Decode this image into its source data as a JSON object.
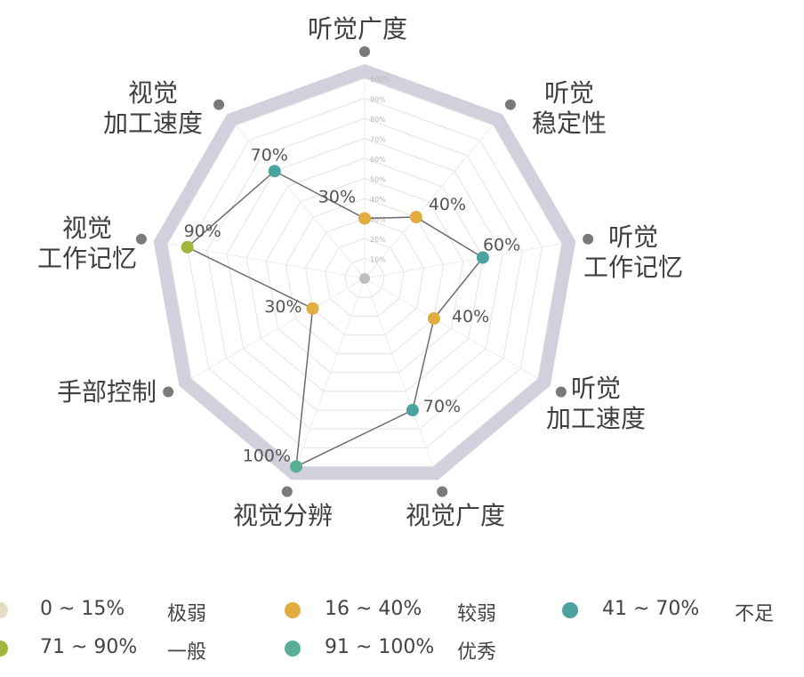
{
  "chart_data": {
    "type": "radar",
    "title": "",
    "axes": [
      {
        "label_lines": [
          "听觉广度"
        ]
      },
      {
        "label_lines": [
          "听觉",
          "稳定性"
        ]
      },
      {
        "label_lines": [
          "听觉",
          "工作记忆"
        ]
      },
      {
        "label_lines": [
          "听觉",
          "加工速度"
        ]
      },
      {
        "label_lines": [
          "视觉广度"
        ]
      },
      {
        "label_lines": [
          "视觉分辨"
        ]
      },
      {
        "label_lines": [
          "手部控制"
        ]
      },
      {
        "label_lines": [
          "视觉",
          "工作记忆"
        ]
      },
      {
        "label_lines": [
          "视觉",
          "加工速度"
        ]
      }
    ],
    "rlim": [
      0,
      100
    ],
    "ring_labels": [
      "10%",
      "20%",
      "30%",
      "40%",
      "50%",
      "60%",
      "70%",
      "80%",
      "90%",
      "100%"
    ],
    "series": [
      {
        "points": [
          {
            "axis": 0,
            "value": 30,
            "label": "30%",
            "category": 1
          },
          {
            "axis": 1,
            "value": 40,
            "label": "40%",
            "category": 1
          },
          {
            "axis": 2,
            "value": 60,
            "label": "60%",
            "category": 2
          },
          {
            "axis": 3,
            "value": 40,
            "label": "40%",
            "category": 1
          },
          {
            "axis": 4,
            "value": 70,
            "label": "70%",
            "category": 2
          },
          {
            "axis": 5,
            "value": 100,
            "label": "100%",
            "category": 4
          },
          {
            "axis": 6,
            "value": 30,
            "label": "30%",
            "category": 1
          },
          {
            "axis": 7,
            "value": 90,
            "label": "90%",
            "category": 3
          },
          {
            "axis": 8,
            "value": 70,
            "label": "70%",
            "category": 2
          }
        ]
      }
    ],
    "legend": [
      {
        "range": "0 ~ 15%",
        "name": "极弱",
        "color": "#e6dcc6"
      },
      {
        "range": "16 ~ 40%",
        "name": "较弱",
        "color": "#e0ad3e"
      },
      {
        "range": "41 ~ 70%",
        "name": "不足",
        "color": "#4aa3a0"
      },
      {
        "range": "71 ~ 90%",
        "name": "一般",
        "color": "#a2b43c"
      },
      {
        "range": "91 ~ 100%",
        "name": "优秀",
        "color": "#5aae96"
      }
    ],
    "colors": {
      "outer_band": "#d2d0dc",
      "grid": "#e3e3e3",
      "line": "#6b6b6b",
      "center_dot": "#bdbdbd",
      "vertex_dot": "#7a7a7a"
    }
  }
}
